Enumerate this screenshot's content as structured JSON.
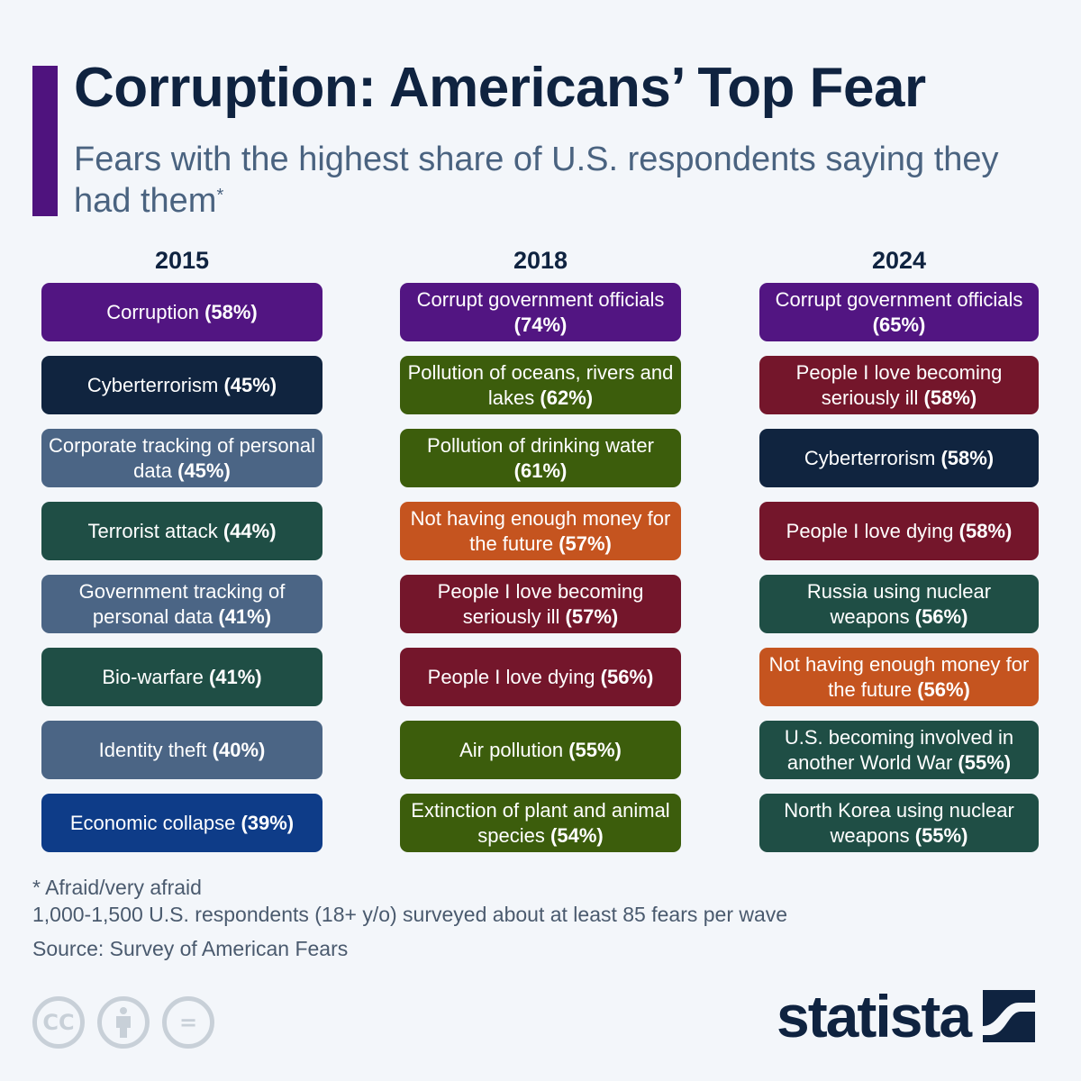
{
  "title": "Corruption: Americans’ Top Fear",
  "subtitle": "Fears with the highest share of U.S. respondents saying they had them",
  "subtitle_mark": "*",
  "colors": {
    "purple": "#521582",
    "navy": "#10243f",
    "slate": "#4b6585",
    "darkgreen": "#1f4e45",
    "blue": "#0e3c88",
    "olive": "#3c5d0c",
    "orange": "#c5541f",
    "maroon": "#74162b"
  },
  "chart_data": {
    "type": "table",
    "columns": [
      {
        "year": "2015",
        "items": [
          {
            "label": "Corruption",
            "value": "(58%)",
            "color": "#521582"
          },
          {
            "label": "Cyberterrorism",
            "value": "(45%)",
            "color": "#10243f"
          },
          {
            "label": "Corporate tracking of personal data",
            "value": "(45%)",
            "color": "#4b6585"
          },
          {
            "label": "Terrorist attack",
            "value": "(44%)",
            "color": "#1f4e45"
          },
          {
            "label": "Government tracking of personal data",
            "value": "(41%)",
            "color": "#4b6585"
          },
          {
            "label": "Bio-warfare",
            "value": "(41%)",
            "color": "#1f4e45"
          },
          {
            "label": "Identity theft",
            "value": "(40%)",
            "color": "#4b6585"
          },
          {
            "label": "Economic collapse",
            "value": "(39%)",
            "color": "#0e3c88"
          }
        ]
      },
      {
        "year": "2018",
        "items": [
          {
            "label": "Corrupt government officials",
            "value": "(74%)",
            "color": "#521582"
          },
          {
            "label": "Pollution of oceans, rivers and lakes",
            "value": "(62%)",
            "color": "#3c5d0c"
          },
          {
            "label": "Pollution of drinking water",
            "value": "(61%)",
            "color": "#3c5d0c"
          },
          {
            "label": "Not having enough money for the future",
            "value": "(57%)",
            "color": "#c5541f"
          },
          {
            "label": "People I love becoming seriously ill",
            "value": "(57%)",
            "color": "#74162b"
          },
          {
            "label": "People I love dying",
            "value": "(56%)",
            "color": "#74162b"
          },
          {
            "label": "Air pollution",
            "value": "(55%)",
            "color": "#3c5d0c"
          },
          {
            "label": "Extinction of plant and animal species",
            "value": "(54%)",
            "color": "#3c5d0c"
          }
        ]
      },
      {
        "year": "2024",
        "items": [
          {
            "label": "Corrupt government officials",
            "value": "(65%)",
            "color": "#521582"
          },
          {
            "label": "People I love becoming seriously ill",
            "value": "(58%)",
            "color": "#74162b"
          },
          {
            "label": "Cyberterrorism",
            "value": "(58%)",
            "color": "#10243f"
          },
          {
            "label": "People I love dying",
            "value": "(58%)",
            "color": "#74162b"
          },
          {
            "label": "Russia using nuclear weapons",
            "value": "(56%)",
            "color": "#1f4e45"
          },
          {
            "label": "Not having enough money for the future",
            "value": "(56%)",
            "color": "#c5541f"
          },
          {
            "label": "U.S. becoming involved in another World War",
            "value": "(55%)",
            "color": "#1f4e45"
          },
          {
            "label": "North Korea using nuclear weapons",
            "value": "(55%)",
            "color": "#1f4e45"
          }
        ]
      }
    ]
  },
  "notes": [
    "* Afraid/very afraid",
    "1,000-1,500 U.S. respondents (18+ y/o) surveyed about at least 85 fears per wave",
    "Source: Survey of American Fears"
  ],
  "license_icons": {
    "cc": "CC",
    "equals": "="
  },
  "brand": "statista"
}
